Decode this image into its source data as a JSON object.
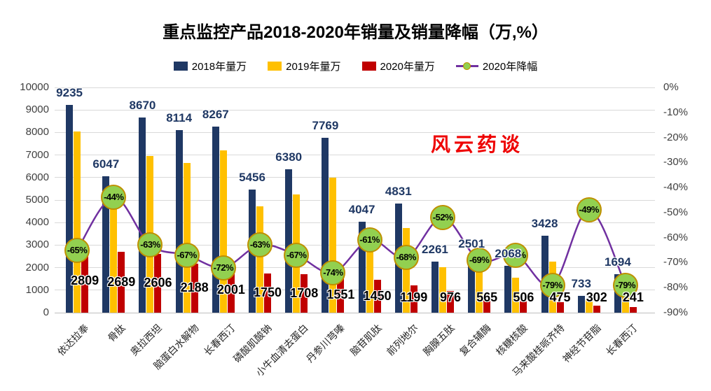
{
  "title": "重点监控产品2018-2020年销量及销量降幅（万,%）",
  "watermark": "风云药谈",
  "legend": {
    "items": [
      {
        "label": "2018年量万",
        "color": "#1F3864",
        "type": "square"
      },
      {
        "label": "2019年量万",
        "color": "#FFC000",
        "type": "square"
      },
      {
        "label": "2020年量万",
        "color": "#C00000",
        "type": "square"
      },
      {
        "label": "2020年降幅",
        "color": "#7030A0",
        "marker_color": "#92D050",
        "type": "line"
      }
    ]
  },
  "chart_data": {
    "type": "bar",
    "subtype": "grouped bars with secondary-axis line",
    "title": "重点监控产品2018-2020年销量及销量降幅（万,%）",
    "categories": [
      "依达拉奉",
      "骨肽",
      "奥拉西坦",
      "脑蛋白水解物",
      "长春西汀",
      "磷酸肌酸钠",
      "小牛血清去蛋白",
      "丹参川芎嗪",
      "脑苷肌肽",
      "前列地尔",
      "胸腺五肽",
      "复合辅酶",
      "核糖核酸",
      "马来酸桂哌齐特",
      "神经节苷脂",
      "长春西汀"
    ],
    "series": [
      {
        "name": "2018年量万",
        "type": "bar",
        "color": "#1F3864",
        "labels_shown": true,
        "label_color": "#1F3864",
        "values": [
          9235,
          6047,
          8670,
          8114,
          8267,
          5456,
          6380,
          7769,
          4047,
          4831,
          2261,
          2501,
          2068,
          3428,
          733,
          1694
        ]
      },
      {
        "name": "2019年量万",
        "type": "bar",
        "color": "#FFC000",
        "labels_shown": false,
        "estimated": true,
        "values": [
          8030,
          4800,
          6950,
          6660,
          7200,
          4730,
          5250,
          5990,
          3750,
          3750,
          2030,
          1830,
          1540,
          2270,
          590,
          1150
        ]
      },
      {
        "name": "2020年量万",
        "type": "bar",
        "color": "#C00000",
        "labels_shown": true,
        "label_color": "#000000",
        "values": [
          2809,
          2689,
          2606,
          2188,
          2001,
          1750,
          1708,
          1551,
          1450,
          1199,
          976,
          565,
          506,
          475,
          302,
          241
        ]
      },
      {
        "name": "2020年降幅",
        "type": "line",
        "axis": "right",
        "color": "#7030A0",
        "marker_color": "#92D050",
        "marker_border": "#BF9000",
        "values_pct": [
          -65,
          -44,
          -63,
          -67,
          -72,
          -63,
          -67,
          -74,
          -61,
          -68,
          -52,
          -69,
          -67,
          -79,
          -49,
          -79
        ],
        "point_labels": [
          "-65%",
          "-44%",
          "-63%",
          "-67%",
          "-72%",
          "-63%",
          "-67%",
          "-74%",
          "-61%",
          "-68%",
          "-52%",
          "-69%",
          "-67%",
          "-79%",
          "-49%",
          "-79%"
        ]
      }
    ],
    "left_axis": {
      "min": 0,
      "max": 10000,
      "step": 1000,
      "ticks": [
        "10000",
        "9000",
        "8000",
        "7000",
        "6000",
        "5000",
        "4000",
        "3000",
        "2000",
        "1000",
        "0"
      ]
    },
    "right_axis": {
      "min": -90,
      "max": 0,
      "step": 10,
      "ticks": [
        "0%",
        "-10%",
        "-20%",
        "-30%",
        "-40%",
        "-50%",
        "-60%",
        "-70%",
        "-80%",
        "-90%"
      ]
    },
    "grid": "horizontal",
    "legend_position": "top"
  }
}
